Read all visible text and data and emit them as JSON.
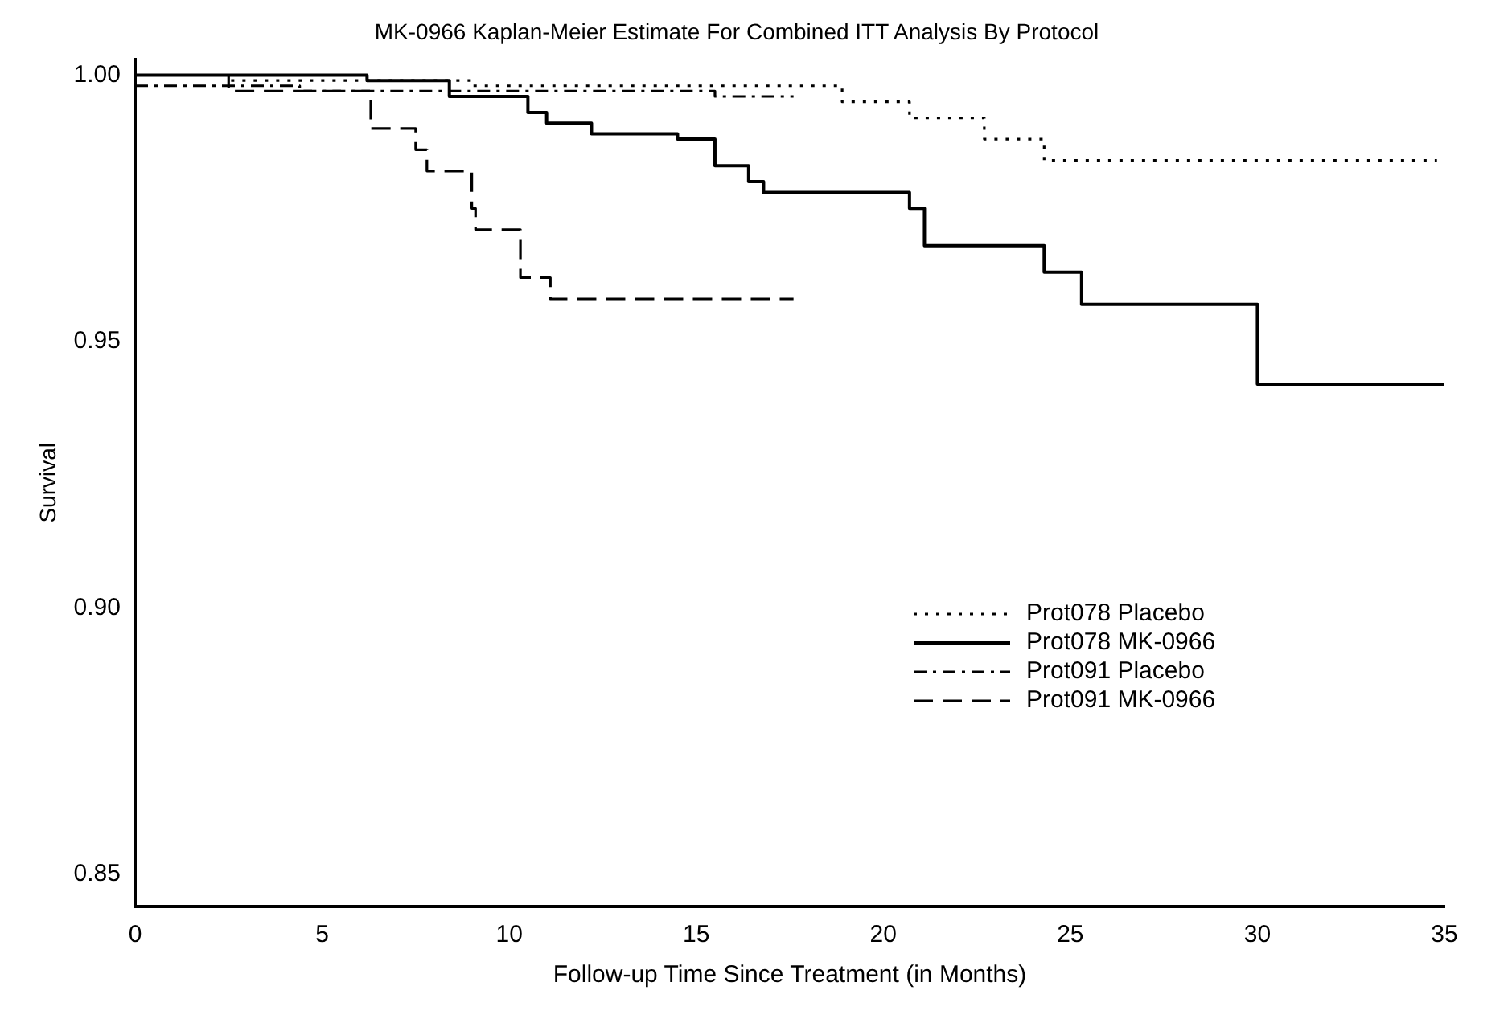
{
  "chart_data": {
    "type": "step",
    "title": "MK-0966 Kaplan-Meier Estimate For Combined ITT Analysis By Protocol",
    "xlabel": "Follow-up Time Since Treatment (in Months)",
    "ylabel": "Survival",
    "series": [
      {
        "name": "Prot078 Placebo",
        "color": "#000000",
        "line_style": "dotted",
        "x": [
          0,
          2.5,
          9,
          16.9,
          18.9,
          20.7,
          22.7,
          24.3,
          34.8
        ],
        "values": [
          1.0,
          0.999,
          0.998,
          0.998,
          0.995,
          0.992,
          0.988,
          0.984,
          0.984
        ]
      },
      {
        "name": "Prot078 MK-0966",
        "color": "#000000",
        "line_style": "solid",
        "x": [
          0,
          6.2,
          8.4,
          10.5,
          11.0,
          12.2,
          14.5,
          15.5,
          16.4,
          16.8,
          20.7,
          21.1,
          24.3,
          25.3,
          30.0,
          35
        ],
        "values": [
          1.0,
          0.999,
          0.996,
          0.993,
          0.991,
          0.989,
          0.988,
          0.983,
          0.98,
          0.978,
          0.975,
          0.968,
          0.963,
          0.957,
          0.942,
          0.942
        ]
      },
      {
        "name": "Prot091 Placebo",
        "color": "#000000",
        "line_style": "dashdot",
        "x": [
          0,
          4.4,
          15.5,
          17.6
        ],
        "values": [
          0.998,
          0.997,
          0.996,
          0.996
        ]
      },
      {
        "name": "Prot091 MK-0966",
        "color": "#000000",
        "line_style": "dashed",
        "x": [
          0,
          2.5,
          6.3,
          7.5,
          7.8,
          9.0,
          9.1,
          10.3,
          11.1,
          17.6
        ],
        "values": [
          1.0,
          0.997,
          0.99,
          0.986,
          0.982,
          0.975,
          0.971,
          0.962,
          0.958,
          0.958
        ]
      }
    ],
    "xlim": [
      0,
      35
    ],
    "xticks": [
      0,
      5,
      10,
      15,
      20,
      25,
      30,
      35
    ],
    "ylim": [
      0.844,
      1.003
    ],
    "yticks": [
      {
        "value": 0.85,
        "label": "0.85"
      },
      {
        "value": 0.9,
        "label": "0.90"
      },
      {
        "value": 0.95,
        "label": "0.95"
      },
      {
        "value": 1.0,
        "label": "1.00"
      }
    ],
    "grid": false,
    "legend": "bottom right",
    "marker": "none"
  }
}
